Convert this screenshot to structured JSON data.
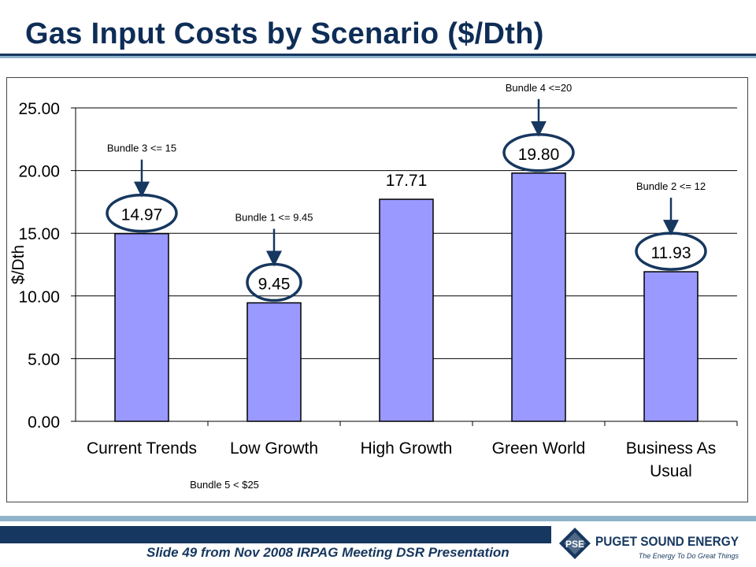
{
  "title": "Gas Input Costs by Scenario ($/Dth)",
  "footer": "Slide 49 from Nov 2008 IRPAG Meeting DSR Presentation",
  "logo": {
    "icon": "pse-logo-icon",
    "badge": "PSE",
    "name": "PUGET SOUND ENERGY",
    "tagline": "The Energy To Do Great Things"
  },
  "colors": {
    "title": "#0e2d57",
    "bar_fill": "#9999ff",
    "bar_stroke": "#000000",
    "arrow": "#16375f",
    "band_dark": "#16375f",
    "band_light": "#8fb4c9"
  },
  "chart_data": {
    "type": "bar",
    "categories": [
      "Current Trends",
      "Low Growth",
      "High Growth",
      "Green World",
      "Business As Usual"
    ],
    "category_lines": [
      [
        "Current Trends"
      ],
      [
        "Low Growth"
      ],
      [
        "High Growth"
      ],
      [
        "Green World"
      ],
      [
        "Business As",
        "Usual"
      ]
    ],
    "values": [
      14.97,
      9.45,
      17.71,
      19.8,
      11.93
    ],
    "data_labels": [
      "14.97",
      "9.45",
      "17.71",
      "19.80",
      "11.93"
    ],
    "circled": [
      true,
      true,
      false,
      true,
      true
    ],
    "ylabel": "$/Dth",
    "ylim": [
      0,
      25
    ],
    "yticks": [
      0,
      5,
      10,
      15,
      20,
      25
    ],
    "ytick_labels": [
      "0.00",
      "5.00",
      "10.00",
      "15.00",
      "20.00",
      "25.00"
    ],
    "grid": true,
    "annotations": [
      {
        "text": "Bundle 3 <= 15",
        "bar_index": 0
      },
      {
        "text": "Bundle 1 <= 9.45",
        "bar_index": 1
      },
      {
        "text": "Bundle 4 <=20",
        "bar_index": 3
      },
      {
        "text": "Bundle 2 <= 12",
        "bar_index": 4
      }
    ],
    "footnote": "Bundle 5 < $25"
  }
}
